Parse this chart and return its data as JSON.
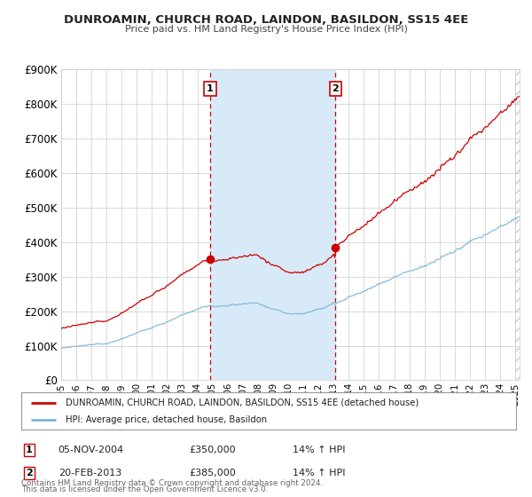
{
  "title": "DUNROAMIN, CHURCH ROAD, LAINDON, BASILDON, SS15 4EE",
  "subtitle": "Price paid vs. HM Land Registry's House Price Index (HPI)",
  "ylim": [
    0,
    900000
  ],
  "xlim_start": 1995.0,
  "xlim_end": 2025.3,
  "sale1_date": 2004.843,
  "sale1_price": 350000,
  "sale2_date": 2013.13,
  "sale2_price": 385000,
  "sale1_annotation": "05-NOV-2004",
  "sale1_pct": "14%",
  "sale2_annotation": "20-FEB-2013",
  "sale2_pct": "14%",
  "legend_entry1": "DUNROAMIN, CHURCH ROAD, LAINDON, BASILDON, SS15 4EE (detached house)",
  "legend_entry2": "HPI: Average price, detached house, Basildon",
  "hpi_color": "#7ab4d8",
  "sale_color": "#cc0000",
  "plot_bg": "#ffffff",
  "grid_color": "#cccccc",
  "highlight_fill": "#d8eaf8",
  "hatch_color": "#cccccc",
  "footer1": "Contains HM Land Registry data © Crown copyright and database right 2024.",
  "footer2": "This data is licensed under the Open Government Licence v3.0."
}
